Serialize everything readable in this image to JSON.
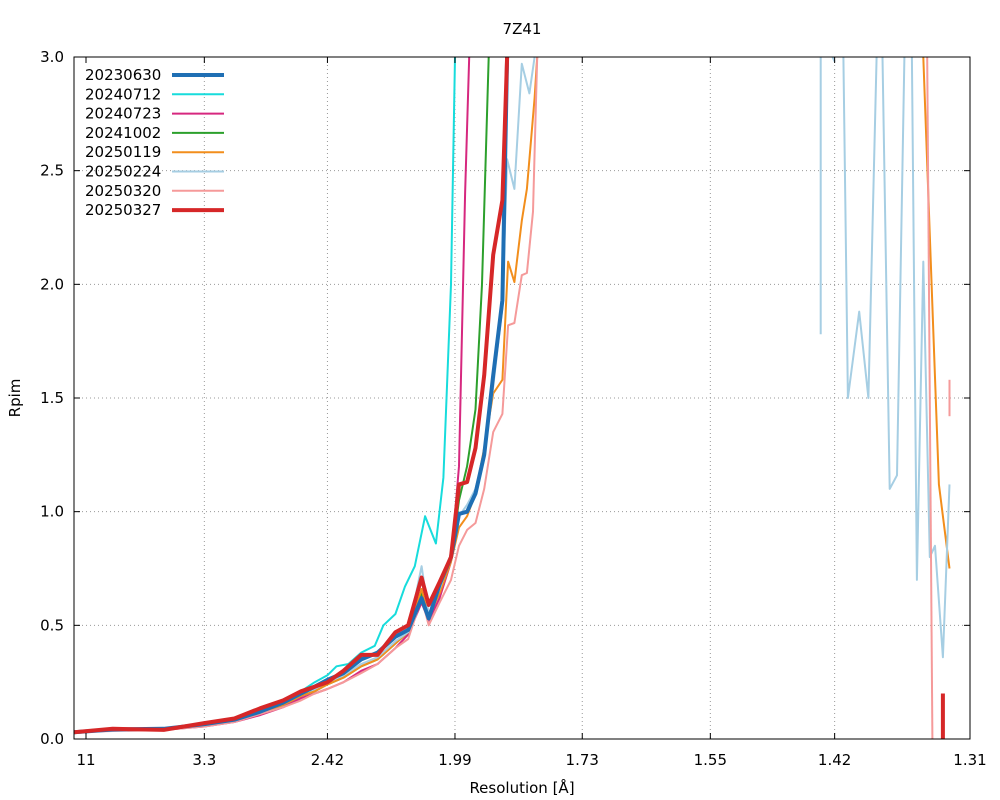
{
  "chart_data": {
    "type": "line",
    "title": "7Z41",
    "xlabel": "Resolution [Å]",
    "ylabel": "Rpim",
    "x_ticks": [
      "11",
      "3.3",
      "2.42",
      "1.99",
      "1.73",
      "1.55",
      "1.42",
      "1.31"
    ],
    "y_ticks": [
      "0.0",
      "0.5",
      "1.0",
      "1.5",
      "2.0",
      "2.5",
      "3.0"
    ],
    "xlim": [
      11,
      1.31
    ],
    "ylim": [
      0,
      3.0
    ],
    "grid": true,
    "legend_position": "top-left",
    "series": [
      {
        "name": "20230630",
        "color": "#1f6fb4",
        "width": 4,
        "points": [
          [
            11,
            0.03
          ],
          [
            5.5,
            0.042
          ],
          [
            3.9,
            0.045
          ],
          [
            3.3,
            0.065
          ],
          [
            3.0,
            0.085
          ],
          [
            2.8,
            0.12
          ],
          [
            2.65,
            0.16
          ],
          [
            2.55,
            0.2
          ],
          [
            2.48,
            0.23
          ],
          [
            2.42,
            0.26
          ],
          [
            2.35,
            0.29
          ],
          [
            2.28,
            0.35
          ],
          [
            2.22,
            0.38
          ],
          [
            2.16,
            0.45
          ],
          [
            2.12,
            0.48
          ],
          [
            2.08,
            0.62
          ],
          [
            2.06,
            0.53
          ],
          [
            2.03,
            0.68
          ],
          [
            2.0,
            0.8
          ],
          [
            1.98,
            0.99
          ],
          [
            1.96,
            1.0
          ],
          [
            1.94,
            1.08
          ],
          [
            1.92,
            1.25
          ],
          [
            1.9,
            1.6
          ],
          [
            1.88,
            1.93
          ],
          [
            1.87,
            3.0
          ]
        ]
      },
      {
        "name": "20240712",
        "color": "#17dcdc",
        "width": 2,
        "points": [
          [
            11,
            0.03
          ],
          [
            5.5,
            0.04
          ],
          [
            3.9,
            0.045
          ],
          [
            3.3,
            0.065
          ],
          [
            3.0,
            0.09
          ],
          [
            2.8,
            0.13
          ],
          [
            2.65,
            0.17
          ],
          [
            2.55,
            0.21
          ],
          [
            2.48,
            0.25
          ],
          [
            2.42,
            0.28
          ],
          [
            2.38,
            0.32
          ],
          [
            2.33,
            0.33
          ],
          [
            2.28,
            0.38
          ],
          [
            2.23,
            0.41
          ],
          [
            2.2,
            0.5
          ],
          [
            2.16,
            0.55
          ],
          [
            2.13,
            0.67
          ],
          [
            2.1,
            0.76
          ],
          [
            2.07,
            0.98
          ],
          [
            2.04,
            0.86
          ],
          [
            2.02,
            1.15
          ],
          [
            2.0,
            2.0
          ],
          [
            1.99,
            3.0
          ]
        ]
      },
      {
        "name": "20240723",
        "color": "#d6287f",
        "width": 2,
        "points": [
          [
            11,
            0.03
          ],
          [
            5.5,
            0.04
          ],
          [
            3.9,
            0.04
          ],
          [
            3.3,
            0.055
          ],
          [
            3.0,
            0.075
          ],
          [
            2.8,
            0.105
          ],
          [
            2.65,
            0.14
          ],
          [
            2.55,
            0.18
          ],
          [
            2.48,
            0.2
          ],
          [
            2.42,
            0.22
          ],
          [
            2.35,
            0.25
          ],
          [
            2.28,
            0.3
          ],
          [
            2.22,
            0.33
          ],
          [
            2.16,
            0.4
          ],
          [
            2.12,
            0.46
          ],
          [
            2.08,
            0.6
          ],
          [
            2.06,
            0.52
          ],
          [
            2.03,
            0.62
          ],
          [
            2.0,
            0.78
          ],
          [
            1.98,
            1.2
          ],
          [
            1.965,
            2.4
          ],
          [
            1.955,
            3.0
          ]
        ]
      },
      {
        "name": "20241002",
        "color": "#2ca02c",
        "width": 2,
        "points": [
          [
            11,
            0.03
          ],
          [
            5.5,
            0.04
          ],
          [
            3.9,
            0.04
          ],
          [
            3.3,
            0.06
          ],
          [
            3.0,
            0.08
          ],
          [
            2.8,
            0.115
          ],
          [
            2.65,
            0.15
          ],
          [
            2.55,
            0.19
          ],
          [
            2.48,
            0.21
          ],
          [
            2.42,
            0.24
          ],
          [
            2.35,
            0.27
          ],
          [
            2.28,
            0.32
          ],
          [
            2.22,
            0.35
          ],
          [
            2.16,
            0.42
          ],
          [
            2.12,
            0.47
          ],
          [
            2.08,
            0.64
          ],
          [
            2.06,
            0.54
          ],
          [
            2.03,
            0.65
          ],
          [
            2.0,
            0.79
          ],
          [
            1.98,
            1.05
          ],
          [
            1.96,
            1.2
          ],
          [
            1.94,
            1.45
          ],
          [
            1.925,
            2.0
          ],
          [
            1.91,
            3.0
          ]
        ]
      },
      {
        "name": "20250119",
        "color": "#f28e1c",
        "width": 2,
        "points": [
          [
            11,
            0.03
          ],
          [
            5.5,
            0.04
          ],
          [
            3.9,
            0.04
          ],
          [
            3.3,
            0.06
          ],
          [
            3.0,
            0.08
          ],
          [
            2.8,
            0.115
          ],
          [
            2.65,
            0.15
          ],
          [
            2.55,
            0.19
          ],
          [
            2.48,
            0.21
          ],
          [
            2.42,
            0.24
          ],
          [
            2.35,
            0.27
          ],
          [
            2.28,
            0.32
          ],
          [
            2.22,
            0.35
          ],
          [
            2.16,
            0.42
          ],
          [
            2.12,
            0.47
          ],
          [
            2.08,
            0.66
          ],
          [
            2.06,
            0.54
          ],
          [
            2.03,
            0.64
          ],
          [
            2.0,
            0.78
          ],
          [
            1.98,
            0.93
          ],
          [
            1.96,
            0.98
          ],
          [
            1.94,
            1.08
          ],
          [
            1.92,
            1.28
          ],
          [
            1.9,
            1.52
          ],
          [
            1.88,
            1.58
          ],
          [
            1.868,
            2.1
          ],
          [
            1.855,
            2.01
          ],
          [
            1.84,
            2.28
          ],
          [
            1.83,
            2.42
          ],
          [
            1.815,
            2.82
          ],
          [
            1.81,
            3.0
          ]
        ],
        "tail": [
          [
            1.345,
            3.0
          ],
          [
            1.333,
            1.12
          ],
          [
            1.325,
            0.75
          ]
        ]
      },
      {
        "name": "20250224",
        "color": "#a6cee3",
        "width": 2,
        "points": [
          [
            11,
            0.03
          ],
          [
            5.5,
            0.04
          ],
          [
            3.9,
            0.042
          ],
          [
            3.3,
            0.06
          ],
          [
            3.0,
            0.08
          ],
          [
            2.8,
            0.12
          ],
          [
            2.65,
            0.16
          ],
          [
            2.55,
            0.2
          ],
          [
            2.48,
            0.22
          ],
          [
            2.42,
            0.25
          ],
          [
            2.35,
            0.28
          ],
          [
            2.28,
            0.33
          ],
          [
            2.22,
            0.36
          ],
          [
            2.16,
            0.43
          ],
          [
            2.12,
            0.47
          ],
          [
            2.08,
            0.76
          ],
          [
            2.06,
            0.55
          ],
          [
            2.03,
            0.66
          ],
          [
            2.0,
            0.8
          ],
          [
            1.98,
            0.98
          ],
          [
            1.96,
            1.03
          ],
          [
            1.94,
            1.1
          ],
          [
            1.92,
            1.25
          ],
          [
            1.9,
            1.55
          ],
          [
            1.88,
            1.9
          ],
          [
            1.87,
            2.55
          ],
          [
            1.855,
            2.42
          ],
          [
            1.84,
            2.97
          ],
          [
            1.825,
            2.84
          ],
          [
            1.815,
            3.0
          ]
        ],
        "tail": [
          [
            1.433,
            3.0
          ],
          [
            1.433,
            1.78
          ]
        ],
        "tail2": [
          [
            1.422,
            3.0
          ],
          [
            1.42,
            2.98
          ]
        ],
        "tail3": [
          [
            1.412,
            3.0
          ],
          [
            1.408,
            1.5
          ],
          [
            1.398,
            1.88
          ],
          [
            1.39,
            1.5
          ],
          [
            1.383,
            3.0
          ]
        ],
        "tail4": [
          [
            1.378,
            3.0
          ],
          [
            1.372,
            1.1
          ],
          [
            1.366,
            1.16
          ],
          [
            1.36,
            3.0
          ]
        ],
        "tail5": [
          [
            1.354,
            3.0
          ],
          [
            1.35,
            0.7
          ],
          [
            1.345,
            2.1
          ],
          [
            1.34,
            0.8
          ],
          [
            1.336,
            0.85
          ],
          [
            1.33,
            0.36
          ],
          [
            1.325,
            1.12
          ]
        ]
      },
      {
        "name": "20250320",
        "color": "#f59a9a",
        "width": 2,
        "points": [
          [
            11,
            0.03
          ],
          [
            5.5,
            0.035
          ],
          [
            3.9,
            0.04
          ],
          [
            3.3,
            0.055
          ],
          [
            3.0,
            0.075
          ],
          [
            2.8,
            0.11
          ],
          [
            2.65,
            0.14
          ],
          [
            2.55,
            0.17
          ],
          [
            2.48,
            0.2
          ],
          [
            2.42,
            0.22
          ],
          [
            2.35,
            0.25
          ],
          [
            2.28,
            0.29
          ],
          [
            2.22,
            0.33
          ],
          [
            2.16,
            0.4
          ],
          [
            2.12,
            0.44
          ],
          [
            2.08,
            0.62
          ],
          [
            2.06,
            0.5
          ],
          [
            2.03,
            0.6
          ],
          [
            2.0,
            0.7
          ],
          [
            1.98,
            0.85
          ],
          [
            1.96,
            0.92
          ],
          [
            1.94,
            0.95
          ],
          [
            1.92,
            1.1
          ],
          [
            1.9,
            1.35
          ],
          [
            1.88,
            1.43
          ],
          [
            1.868,
            1.82
          ],
          [
            1.855,
            1.83
          ],
          [
            1.84,
            2.04
          ],
          [
            1.83,
            2.05
          ],
          [
            1.818,
            2.32
          ],
          [
            1.81,
            3.0
          ]
        ],
        "tail": [
          [
            1.342,
            3.0
          ],
          [
            1.338,
            0.0
          ]
        ],
        "tail2": [
          [
            1.325,
            1.58
          ],
          [
            1.325,
            1.42
          ]
        ]
      },
      {
        "name": "20250327",
        "color": "#d62728",
        "width": 4,
        "points": [
          [
            11,
            0.03
          ],
          [
            5.5,
            0.045
          ],
          [
            3.9,
            0.04
          ],
          [
            3.3,
            0.07
          ],
          [
            3.0,
            0.09
          ],
          [
            2.8,
            0.135
          ],
          [
            2.65,
            0.17
          ],
          [
            2.55,
            0.21
          ],
          [
            2.48,
            0.23
          ],
          [
            2.42,
            0.25
          ],
          [
            2.35,
            0.3
          ],
          [
            2.28,
            0.37
          ],
          [
            2.22,
            0.37
          ],
          [
            2.16,
            0.47
          ],
          [
            2.12,
            0.5
          ],
          [
            2.08,
            0.71
          ],
          [
            2.06,
            0.59
          ],
          [
            2.03,
            0.69
          ],
          [
            2.0,
            0.8
          ],
          [
            1.98,
            1.12
          ],
          [
            1.96,
            1.13
          ],
          [
            1.94,
            1.28
          ],
          [
            1.92,
            1.6
          ],
          [
            1.9,
            2.13
          ],
          [
            1.88,
            2.37
          ],
          [
            1.87,
            3.0
          ]
        ],
        "tail": [
          [
            1.33,
            0.2
          ],
          [
            1.33,
            0.0
          ]
        ]
      }
    ]
  }
}
